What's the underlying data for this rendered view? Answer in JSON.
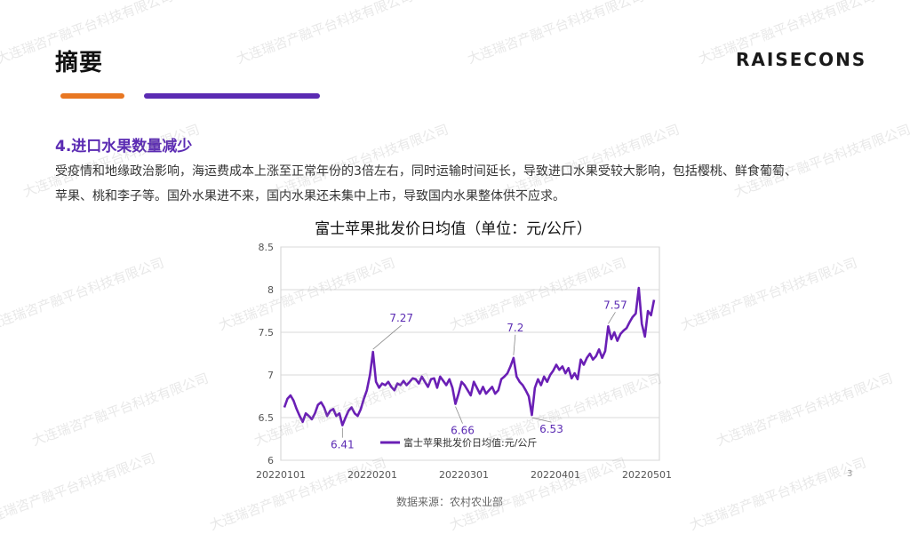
{
  "header": {
    "title": "摘要",
    "logo_text": "RAISECONS"
  },
  "section_title": "4.进口水果数量减少",
  "paragraph": [
    "受疫情和地缘政治影响，海运费成本上涨至正常年份的3倍左右，同时运输时间延长，导致进口水果受较大影响，包括樱桃、鲜食葡萄、",
    "苹果、桃和李子等。国外水果进不来，国内水果还未集中上市，导致国内水果整体供不应求。"
  ],
  "watermark_text": "大连瑞咨产融平台科技有限公司",
  "source": "数据来源：农村农业部",
  "page_number": "3",
  "colors": {
    "accent_purple": "#5b2bb3",
    "accent_orange": "#e87722",
    "line": "#6a1fb5"
  },
  "chart_data": {
    "type": "line",
    "title": "富士苹果批发价日均值（单位：元/公斤）",
    "xlabel": "",
    "ylabel": "",
    "ylim": [
      6,
      8.5
    ],
    "y_ticks": [
      "6",
      "6.5",
      "7",
      "7.5",
      "8",
      "8.5"
    ],
    "x_ticks": [
      "20220101",
      "20220201",
      "20220301",
      "20220401",
      "20220501"
    ],
    "grid": true,
    "legend_position": "bottom-center",
    "series": [
      {
        "name": "富士苹果批发价日均值:元/公斤",
        "values": [
          6.62,
          6.72,
          6.76,
          6.7,
          6.6,
          6.52,
          6.45,
          6.55,
          6.52,
          6.48,
          6.55,
          6.65,
          6.68,
          6.62,
          6.52,
          6.58,
          6.6,
          6.52,
          6.55,
          6.41,
          6.5,
          6.58,
          6.62,
          6.55,
          6.52,
          6.6,
          6.72,
          6.82,
          7.0,
          7.27,
          6.92,
          6.85,
          6.9,
          6.88,
          6.92,
          6.86,
          6.82,
          6.9,
          6.88,
          6.93,
          6.88,
          6.92,
          6.96,
          6.95,
          6.9,
          6.98,
          6.92,
          6.86,
          6.95,
          6.96,
          6.85,
          6.98,
          6.93,
          6.88,
          6.95,
          6.85,
          6.66,
          6.78,
          6.92,
          6.88,
          6.82,
          6.76,
          6.92,
          6.85,
          6.78,
          6.86,
          6.78,
          6.82,
          6.86,
          6.78,
          6.82,
          6.95,
          6.98,
          7.02,
          7.1,
          7.2,
          6.98,
          6.92,
          6.88,
          6.82,
          6.75,
          6.53,
          6.85,
          6.95,
          6.88,
          6.98,
          6.92,
          7.0,
          7.05,
          7.12,
          7.06,
          7.1,
          7.02,
          7.08,
          6.96,
          7.02,
          6.95,
          7.18,
          7.12,
          7.2,
          7.25,
          7.18,
          7.22,
          7.3,
          7.2,
          7.28,
          7.57,
          7.42,
          7.5,
          7.4,
          7.48,
          7.52,
          7.55,
          7.62,
          7.68,
          7.72,
          8.02,
          7.6,
          7.45,
          7.75,
          7.7,
          7.88
        ],
        "value_labels": [
          {
            "index": 19,
            "text": "6.41"
          },
          {
            "index": 29,
            "text": "7.27"
          },
          {
            "index": 56,
            "text": "6.66"
          },
          {
            "index": 75,
            "text": "7.2"
          },
          {
            "index": 81,
            "text": "6.53"
          },
          {
            "index": 106,
            "text": "7.57"
          }
        ]
      }
    ]
  }
}
